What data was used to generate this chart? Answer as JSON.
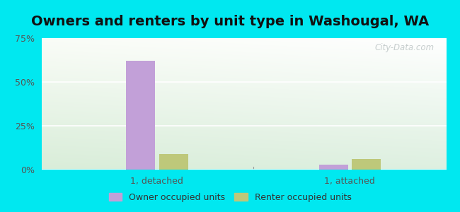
{
  "title": "Owners and renters by unit type in Washougal, WA",
  "categories": [
    "1, detached",
    "1, attached"
  ],
  "owner_values": [
    62.0,
    3.0
  ],
  "renter_values": [
    9.0,
    6.0
  ],
  "owner_color": "#c2a0d8",
  "renter_color": "#bec87a",
  "background_outer": "#00e8f0",
  "background_inner_left": "#e8f5e0",
  "background_inner_right": "#f5fbf0",
  "ylim": [
    0,
    75
  ],
  "yticks": [
    0,
    25,
    50,
    75
  ],
  "ytick_labels": [
    "0%",
    "25%",
    "50%",
    "75%"
  ],
  "legend_labels": [
    "Owner occupied units",
    "Renter occupied units"
  ],
  "watermark": "City-Data.com",
  "title_fontsize": 14,
  "tick_fontsize": 9,
  "legend_fontsize": 9
}
